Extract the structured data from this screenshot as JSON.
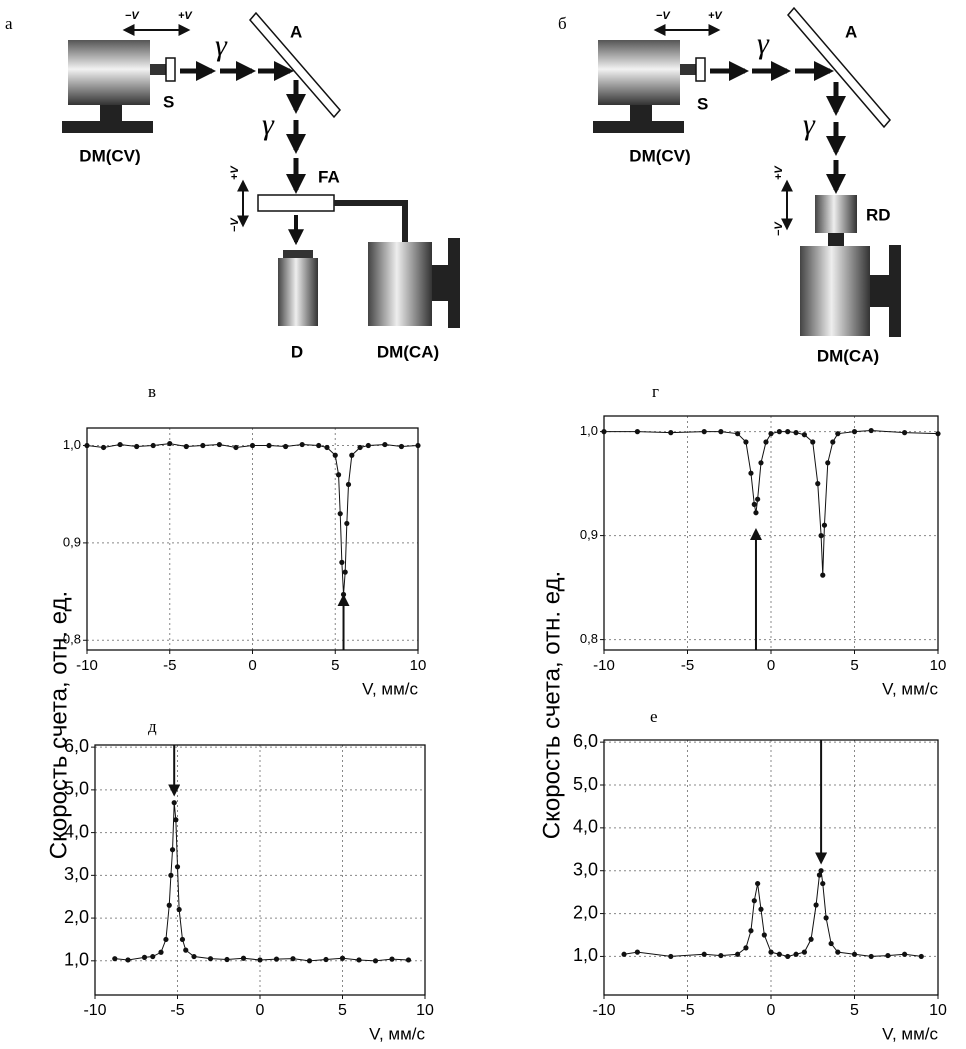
{
  "panel_labels": [
    "а",
    "б",
    "в",
    "г",
    "д",
    "е"
  ],
  "diagram_a": {
    "minus_v": "−V",
    "plus_v": "+V",
    "source": "S",
    "gamma_1": "γ",
    "analyzer": "A",
    "gamma_2": "γ",
    "drive_source": "DM(CV)",
    "filter_absorber": "FA",
    "fa_plus_v": "+V",
    "fa_minus_v": "−V",
    "detector": "D",
    "drive_absorber": "DM(CA)"
  },
  "diagram_b": {
    "minus_v": "−V",
    "plus_v": "+V",
    "source": "S",
    "gamma_1": "γ",
    "analyzer": "A",
    "gamma_2": "γ",
    "drive_source": "DM(CV)",
    "rd_plus_v": "+V",
    "rd_minus_v": "−V",
    "resonant_detector": "RD",
    "drive_absorber": "DM(CA)"
  },
  "chart_data": [
    {
      "type": "line",
      "markers": true,
      "color": "#111111",
      "grid": true,
      "x_label": "V, мм/с",
      "x": [
        -10,
        -9,
        -8,
        -7,
        -6,
        -5,
        -4,
        -3,
        -2,
        -1,
        0,
        1,
        2,
        3,
        4,
        4.5,
        5,
        5.2,
        5.3,
        5.4,
        5.5,
        5.6,
        5.7,
        5.8,
        6,
        6.5,
        7,
        8,
        9,
        10
      ],
      "values": [
        1.0,
        0.998,
        1.001,
        0.999,
        1.0,
        1.002,
        0.999,
        1.0,
        1.001,
        0.998,
        1.0,
        1.0,
        0.999,
        1.001,
        1.0,
        0.998,
        0.99,
        0.97,
        0.93,
        0.88,
        0.847,
        0.87,
        0.92,
        0.96,
        0.99,
        0.998,
        1.0,
        1.001,
        0.999,
        1.0
      ],
      "xlim": [
        -10,
        10
      ],
      "xticks": [
        -10,
        -5,
        0,
        5,
        10
      ],
      "ylim": [
        0.79,
        1.018
      ],
      "yticks": [
        {
          "value": 0.8,
          "label": "0,8"
        },
        {
          "value": 0.9,
          "label": "0,9"
        },
        {
          "value": 1.0,
          "label": "1,0"
        }
      ],
      "arrows": [
        {
          "x": 5.5,
          "y": [
            0.79,
            0.845
          ]
        }
      ]
    },
    {
      "type": "line",
      "markers": true,
      "color": "#111111",
      "grid": true,
      "x_label": "V, мм/с",
      "x": [
        -10,
        -8,
        -6,
        -4,
        -3,
        -2,
        -1.5,
        -1.2,
        -1,
        -0.9,
        -0.8,
        -0.6,
        -0.3,
        0,
        0.5,
        1,
        1.5,
        2,
        2.5,
        2.8,
        3,
        3.1,
        3.2,
        3.4,
        3.7,
        4,
        5,
        6,
        8,
        10
      ],
      "values": [
        1.0,
        1.0,
        0.999,
        1.0,
        1.0,
        0.998,
        0.99,
        0.96,
        0.93,
        0.922,
        0.935,
        0.97,
        0.99,
        0.998,
        1.0,
        1.0,
        0.999,
        0.997,
        0.99,
        0.95,
        0.9,
        0.862,
        0.91,
        0.97,
        0.99,
        0.998,
        1.0,
        1.001,
        0.999,
        0.998
      ],
      "xlim": [
        -10,
        10
      ],
      "xticks": [
        -10,
        -5,
        0,
        5,
        10
      ],
      "ylim": [
        0.79,
        1.015
      ],
      "yticks": [
        {
          "value": 0.8,
          "label": "0,8"
        },
        {
          "value": 0.9,
          "label": "0,9"
        },
        {
          "value": 1.0,
          "label": "1,0"
        }
      ],
      "arrows": [
        {
          "x": -0.9,
          "y": [
            0.79,
            0.905
          ]
        }
      ]
    },
    {
      "type": "line",
      "markers": true,
      "color": "#111111",
      "grid": true,
      "x_label": "V, мм/с",
      "y_label": "Скорость счета, отн. ед.",
      "x": [
        -8.8,
        -8,
        -7,
        -6.5,
        -6,
        -5.7,
        -5.5,
        -5.4,
        -5.3,
        -5.2,
        -5.1,
        -5,
        -4.9,
        -4.7,
        -4.5,
        -4,
        -3,
        -2,
        -1,
        0,
        1,
        2,
        3,
        4,
        5,
        6,
        7,
        8,
        9
      ],
      "values": [
        1.05,
        1.02,
        1.08,
        1.1,
        1.2,
        1.5,
        2.3,
        3.0,
        3.6,
        4.7,
        4.3,
        3.2,
        2.2,
        1.5,
        1.25,
        1.1,
        1.05,
        1.03,
        1.06,
        1.02,
        1.04,
        1.05,
        1.0,
        1.03,
        1.06,
        1.02,
        1.0,
        1.04,
        1.02
      ],
      "xlim": [
        -10,
        10
      ],
      "xticks": [
        -10,
        -5,
        0,
        5,
        10
      ],
      "ylim": [
        0.2,
        6.05
      ],
      "yticks": [
        {
          "value": 1.0,
          "label": "1,0"
        },
        {
          "value": 2.0,
          "label": "2,0"
        },
        {
          "value": 3.0,
          "label": "3,0"
        },
        {
          "value": 4.0,
          "label": "4,0"
        },
        {
          "value": 5.0,
          "label": "5,0"
        },
        {
          "value": 6.0,
          "label": "6,0"
        }
      ],
      "arrows": [
        {
          "x": -5.2,
          "y": [
            6.05,
            4.9
          ]
        }
      ]
    },
    {
      "type": "line",
      "markers": true,
      "color": "#111111",
      "grid": true,
      "x_label": "V, мм/с",
      "y_label": "Скорость счета, отн. ед.",
      "x": [
        -8.8,
        -8,
        -6,
        -4,
        -3,
        -2,
        -1.5,
        -1.2,
        -1,
        -0.8,
        -0.6,
        -0.4,
        0,
        0.5,
        1,
        1.5,
        2,
        2.4,
        2.7,
        2.9,
        3,
        3.1,
        3.3,
        3.6,
        4,
        5,
        6,
        7,
        8,
        9
      ],
      "values": [
        1.05,
        1.1,
        1.0,
        1.05,
        1.02,
        1.05,
        1.2,
        1.6,
        2.3,
        2.7,
        2.1,
        1.5,
        1.1,
        1.05,
        1.0,
        1.05,
        1.1,
        1.4,
        2.2,
        2.9,
        3.0,
        2.7,
        1.9,
        1.3,
        1.1,
        1.05,
        1.0,
        1.02,
        1.05,
        1.0
      ],
      "xlim": [
        -10,
        10
      ],
      "xticks": [
        -10,
        -5,
        0,
        5,
        10
      ],
      "ylim": [
        0.1,
        6.05
      ],
      "yticks": [
        {
          "value": 1.0,
          "label": "1,0"
        },
        {
          "value": 2.0,
          "label": "2,0"
        },
        {
          "value": 3.0,
          "label": "3,0"
        },
        {
          "value": 4.0,
          "label": "4,0"
        },
        {
          "value": 5.0,
          "label": "5,0"
        },
        {
          "value": 6.0,
          "label": "6,0"
        }
      ],
      "arrows": [
        {
          "x": 3.0,
          "y": [
            6.05,
            3.2
          ]
        }
      ]
    }
  ]
}
